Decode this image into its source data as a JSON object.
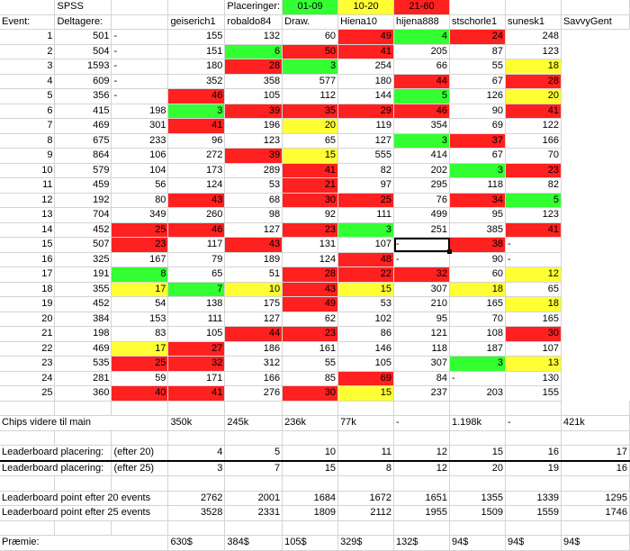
{
  "top": {
    "spss": "SPSS",
    "placeringer": "Placeringer:",
    "legend": [
      {
        "label": "01-09",
        "color": "#33ff33"
      },
      {
        "label": "10-20",
        "color": "#ffff33"
      },
      {
        "label": "21-60",
        "color": "#ff2020"
      }
    ]
  },
  "header": {
    "event": "Event:",
    "deltagere": "Deltagere:",
    "players": [
      "geiserich1",
      "robaldo84",
      "Draw.",
      "Hiena10",
      "hijena888",
      "stschorle1",
      "sunesk1",
      "SavvyGent"
    ]
  },
  "rows": [
    {
      "n": "1",
      "d": "501",
      "v": [
        "-",
        "155",
        "132",
        "60",
        "49",
        "4",
        "24",
        "248"
      ],
      "c": [
        "",
        "",
        "",
        "",
        "r",
        "g",
        "r",
        ""
      ]
    },
    {
      "n": "2",
      "d": "504",
      "v": [
        "-",
        "151",
        "6",
        "50",
        "41",
        "205",
        "87",
        "123"
      ],
      "c": [
        "",
        "",
        "g",
        "r",
        "r",
        "",
        "",
        ""
      ]
    },
    {
      "n": "3",
      "d": "1593",
      "v": [
        "-",
        "180",
        "28",
        "3",
        "254",
        "66",
        "55",
        "18"
      ],
      "c": [
        "",
        "",
        "r",
        "g",
        "",
        "",
        "",
        "y"
      ]
    },
    {
      "n": "4",
      "d": "609",
      "v": [
        "-",
        "352",
        "358",
        "577",
        "180",
        "44",
        "67",
        "28"
      ],
      "c": [
        "",
        "",
        "",
        "",
        "",
        "r",
        "",
        "r"
      ]
    },
    {
      "n": "5",
      "d": "356",
      "v": [
        "-",
        "46",
        "105",
        "112",
        "144",
        "5",
        "126",
        "20"
      ],
      "c": [
        "",
        "r",
        "",
        "",
        "",
        "g",
        "",
        "y"
      ]
    },
    {
      "n": "6",
      "d": "415",
      "v": [
        "198",
        "3",
        "39",
        "35",
        "29",
        "46",
        "90",
        "41"
      ],
      "c": [
        "",
        "g",
        "r",
        "r",
        "r",
        "r",
        "",
        "r"
      ]
    },
    {
      "n": "7",
      "d": "469",
      "v": [
        "301",
        "41",
        "196",
        "20",
        "119",
        "354",
        "69",
        "122"
      ],
      "c": [
        "",
        "r",
        "",
        "y",
        "",
        "",
        "",
        ""
      ]
    },
    {
      "n": "8",
      "d": "675",
      "v": [
        "233",
        "96",
        "123",
        "65",
        "127",
        "3",
        "37",
        "166"
      ],
      "c": [
        "",
        "",
        "",
        "",
        "",
        "g",
        "r",
        ""
      ]
    },
    {
      "n": "9",
      "d": "864",
      "v": [
        "106",
        "272",
        "39",
        "15",
        "555",
        "414",
        "67",
        "70"
      ],
      "c": [
        "",
        "",
        "r",
        "y",
        "",
        "",
        "",
        ""
      ]
    },
    {
      "n": "10",
      "d": "579",
      "v": [
        "104",
        "173",
        "289",
        "41",
        "82",
        "202",
        "3",
        "23"
      ],
      "c": [
        "",
        "",
        "",
        "r",
        "",
        "",
        "g",
        "r"
      ]
    },
    {
      "n": "11",
      "d": "459",
      "v": [
        "56",
        "124",
        "53",
        "21",
        "97",
        "295",
        "118",
        "82"
      ],
      "c": [
        "",
        "",
        "",
        "r",
        "",
        "",
        "",
        ""
      ]
    },
    {
      "n": "12",
      "d": "192",
      "v": [
        "80",
        "43",
        "68",
        "30",
        "25",
        "76",
        "34",
        "5"
      ],
      "c": [
        "",
        "r",
        "",
        "r",
        "r",
        "",
        "r",
        "g"
      ]
    },
    {
      "n": "13",
      "d": "704",
      "v": [
        "349",
        "260",
        "98",
        "92",
        "111",
        "499",
        "95",
        "123"
      ],
      "c": [
        "",
        "",
        "",
        "",
        "",
        "",
        "",
        ""
      ]
    },
    {
      "n": "14",
      "d": "452",
      "v": [
        "25",
        "46",
        "127",
        "23",
        "3",
        "251",
        "385",
        "41"
      ],
      "c": [
        "r",
        "r",
        "",
        "r",
        "g",
        "",
        "",
        "r"
      ]
    },
    {
      "n": "15",
      "d": "507",
      "v": [
        "23",
        "117",
        "43",
        "131",
        "107",
        "-",
        "38",
        "-"
      ],
      "c": [
        "r",
        "",
        "r",
        "",
        "",
        "sel",
        "r",
        ""
      ]
    },
    {
      "n": "16",
      "d": "325",
      "v": [
        "167",
        "79",
        "189",
        "124",
        "48",
        "-",
        "90",
        "-"
      ],
      "c": [
        "",
        "",
        "",
        "",
        "r",
        "",
        "",
        ""
      ]
    },
    {
      "n": "17",
      "d": "191",
      "v": [
        "8",
        "65",
        "51",
        "28",
        "22",
        "32",
        "60",
        "12"
      ],
      "c": [
        "g",
        "",
        "",
        "r",
        "r",
        "r",
        "",
        "y"
      ]
    },
    {
      "n": "18",
      "d": "355",
      "v": [
        "17",
        "7",
        "10",
        "43",
        "15",
        "307",
        "18",
        "65"
      ],
      "c": [
        "y",
        "g",
        "y",
        "r",
        "y",
        "",
        "y",
        ""
      ]
    },
    {
      "n": "19",
      "d": "452",
      "v": [
        "54",
        "138",
        "175",
        "49",
        "53",
        "210",
        "165",
        "18"
      ],
      "c": [
        "",
        "",
        "",
        "r",
        "",
        "",
        "",
        "y"
      ]
    },
    {
      "n": "20",
      "d": "384",
      "v": [
        "153",
        "111",
        "127",
        "62",
        "102",
        "95",
        "70",
        "165"
      ],
      "c": [
        "",
        "",
        "",
        "",
        "",
        "",
        "",
        ""
      ]
    },
    {
      "n": "21",
      "d": "198",
      "v": [
        "83",
        "105",
        "44",
        "23",
        "86",
        "121",
        "108",
        "30"
      ],
      "c": [
        "",
        "",
        "r",
        "r",
        "",
        "",
        "",
        "r"
      ]
    },
    {
      "n": "22",
      "d": "469",
      "v": [
        "17",
        "27",
        "186",
        "161",
        "146",
        "118",
        "187",
        "107"
      ],
      "c": [
        "y",
        "r",
        "",
        "",
        "",
        "",
        "",
        ""
      ]
    },
    {
      "n": "23",
      "d": "535",
      "v": [
        "25",
        "32",
        "312",
        "55",
        "105",
        "307",
        "3",
        "13"
      ],
      "c": [
        "r",
        "r",
        "",
        "",
        "",
        "",
        "g",
        "y"
      ]
    },
    {
      "n": "24",
      "d": "281",
      "v": [
        "59",
        "171",
        "166",
        "85",
        "69",
        "84",
        "-",
        "130"
      ],
      "c": [
        "",
        "",
        "",
        "",
        "r",
        "",
        "",
        ""
      ]
    },
    {
      "n": "25",
      "d": "360",
      "v": [
        "40",
        "41",
        "276",
        "30",
        "15",
        "237",
        "203",
        "155"
      ],
      "c": [
        "r",
        "r",
        "",
        "r",
        "y",
        "",
        "",
        ""
      ]
    }
  ],
  "chips": {
    "label": "Chips videre til main",
    "v": [
      "350k",
      "245k",
      "236k",
      "77k",
      "-",
      "1.198k",
      "-",
      "421k"
    ]
  },
  "lb20": {
    "label": "Leaderboard placering:",
    "sub": "(efter 20)",
    "v": [
      "4",
      "5",
      "10",
      "11",
      "12",
      "15",
      "16",
      "17"
    ]
  },
  "lb25": {
    "label": "Leaderboard placering:",
    "sub": "(efter 25)",
    "v": [
      "3",
      "7",
      "15",
      "8",
      "12",
      "20",
      "19",
      "16"
    ]
  },
  "pts20": {
    "label": "Leaderboard point efter 20 events",
    "v": [
      "2762",
      "2001",
      "1684",
      "1672",
      "1651",
      "1355",
      "1339",
      "1295"
    ]
  },
  "pts25": {
    "label": "Leaderboard point efter 25 events",
    "v": [
      "3528",
      "2331",
      "1809",
      "2112",
      "1955",
      "1509",
      "1559",
      "1746"
    ]
  },
  "prize": {
    "label": "Præmie:",
    "v": [
      "630$",
      "384$",
      "105$",
      "329$",
      "132$",
      "94$",
      "94$",
      "94$"
    ]
  }
}
